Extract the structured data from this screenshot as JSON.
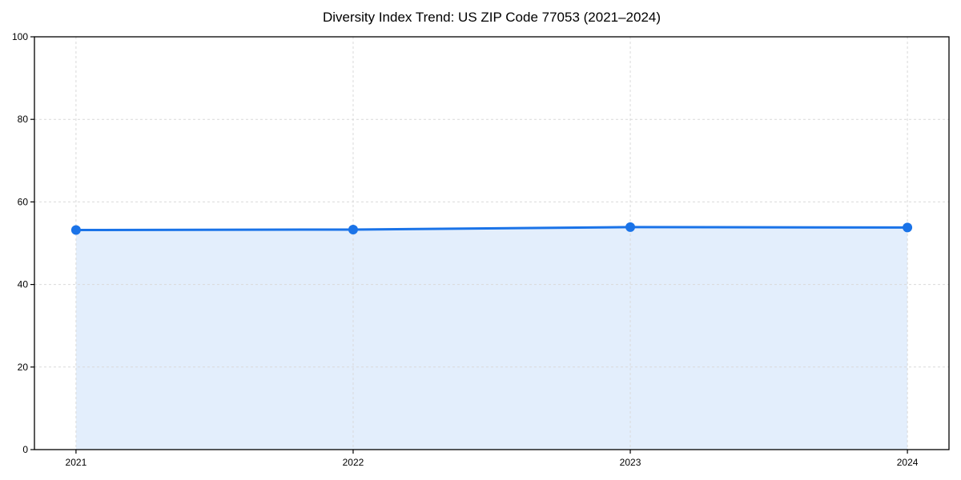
{
  "page": {
    "background_color": "#ffffff"
  },
  "chart_data": {
    "type": "area",
    "title": "Diversity Index Trend: US ZIP Code 77053 (2021–2024)",
    "x": [
      2021,
      2022,
      2023,
      2024
    ],
    "categories": [
      "2021",
      "2022",
      "2023",
      "2024"
    ],
    "series": [
      {
        "name": "Diversity Index",
        "values": [
          53.2,
          53.3,
          53.9,
          53.8
        ]
      }
    ],
    "xlabel": "",
    "ylabel": "",
    "ylim": [
      0,
      100
    ],
    "xlim": [
      2020.85,
      2024.15
    ],
    "yticks": [
      0,
      20,
      40,
      60,
      80,
      100
    ],
    "xticks": [
      2021,
      2022,
      2023,
      2024
    ],
    "grid": true,
    "grid_style": "dashed",
    "legend_position": "none",
    "line_color": "#1a73e8",
    "fill_color": "rgba(26,115,232,0.12)",
    "grid_color": "#d9d9d9",
    "spine_color": "#000000",
    "marker": "circle",
    "marker_radius": 6,
    "line_width": 3
  }
}
